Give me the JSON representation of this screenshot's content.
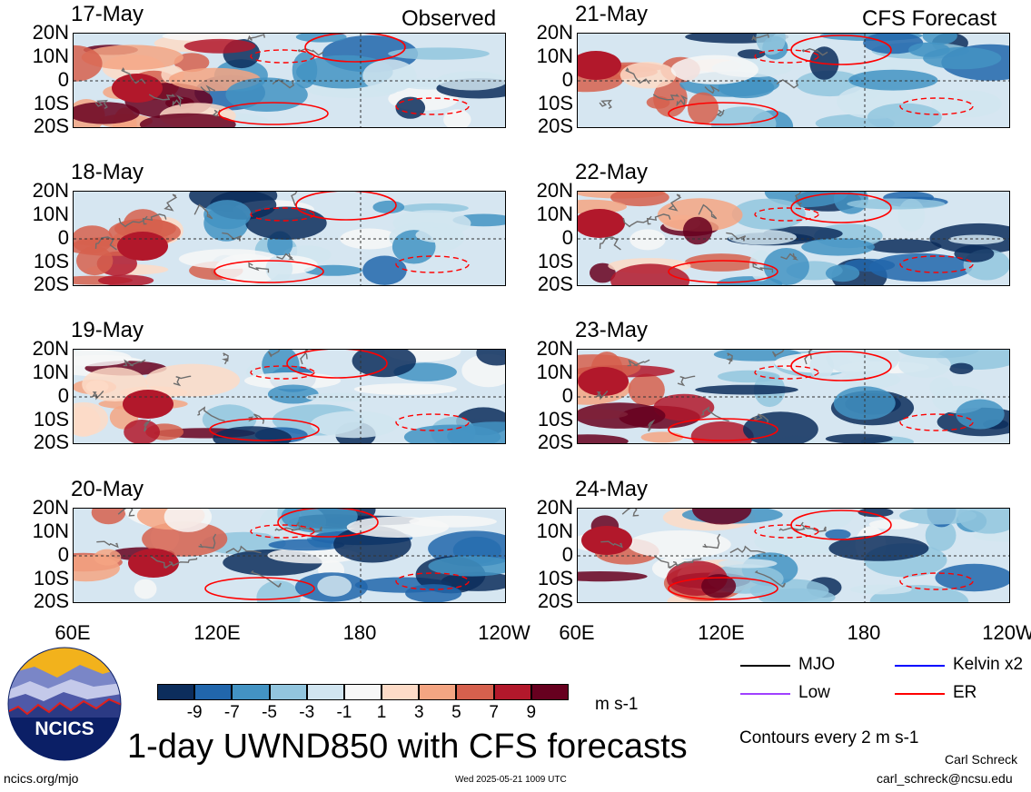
{
  "columns": {
    "observed": "Observed",
    "forecast": "CFS Forecast"
  },
  "panels_left": [
    "17-May",
    "18-May",
    "19-May",
    "20-May"
  ],
  "panels_right": [
    "21-May",
    "22-May",
    "23-May",
    "24-May"
  ],
  "lat_labels": [
    "20N",
    "10N",
    "0",
    "10S",
    "20S"
  ],
  "lon_labels": [
    "60E",
    "120E",
    "180",
    "120W"
  ],
  "colorbar": {
    "labels": [
      "-9",
      "-7",
      "-5",
      "-3",
      "-1",
      "1",
      "3",
      "5",
      "7",
      "9"
    ],
    "colors": [
      "#0c2d5c",
      "#2166ac",
      "#4393c3",
      "#92c5de",
      "#d1e5f0",
      "#f7f7f7",
      "#fddbc7",
      "#f4a582",
      "#d6604d",
      "#b2182b",
      "#67001f"
    ],
    "units": "m s-1"
  },
  "legend": {
    "items": [
      {
        "label": "MJO",
        "color": "#000000"
      },
      {
        "label": "Kelvin x2",
        "color": "#0000ff"
      },
      {
        "label": "Low",
        "color": "#a040ff"
      },
      {
        "label": "ER",
        "color": "#ff0000"
      }
    ],
    "contours_note": "Contours every 2 m s-1"
  },
  "logo_text": "NCICS",
  "title": "1-day UWND850 with CFS forecasts",
  "footer": {
    "url": "ncics.org/mjo",
    "timestamp": "Wed 2025-05-21 1009 UTC",
    "author": "Carl Schreck",
    "email": "carl_schreck@ncsu.edu"
  }
}
